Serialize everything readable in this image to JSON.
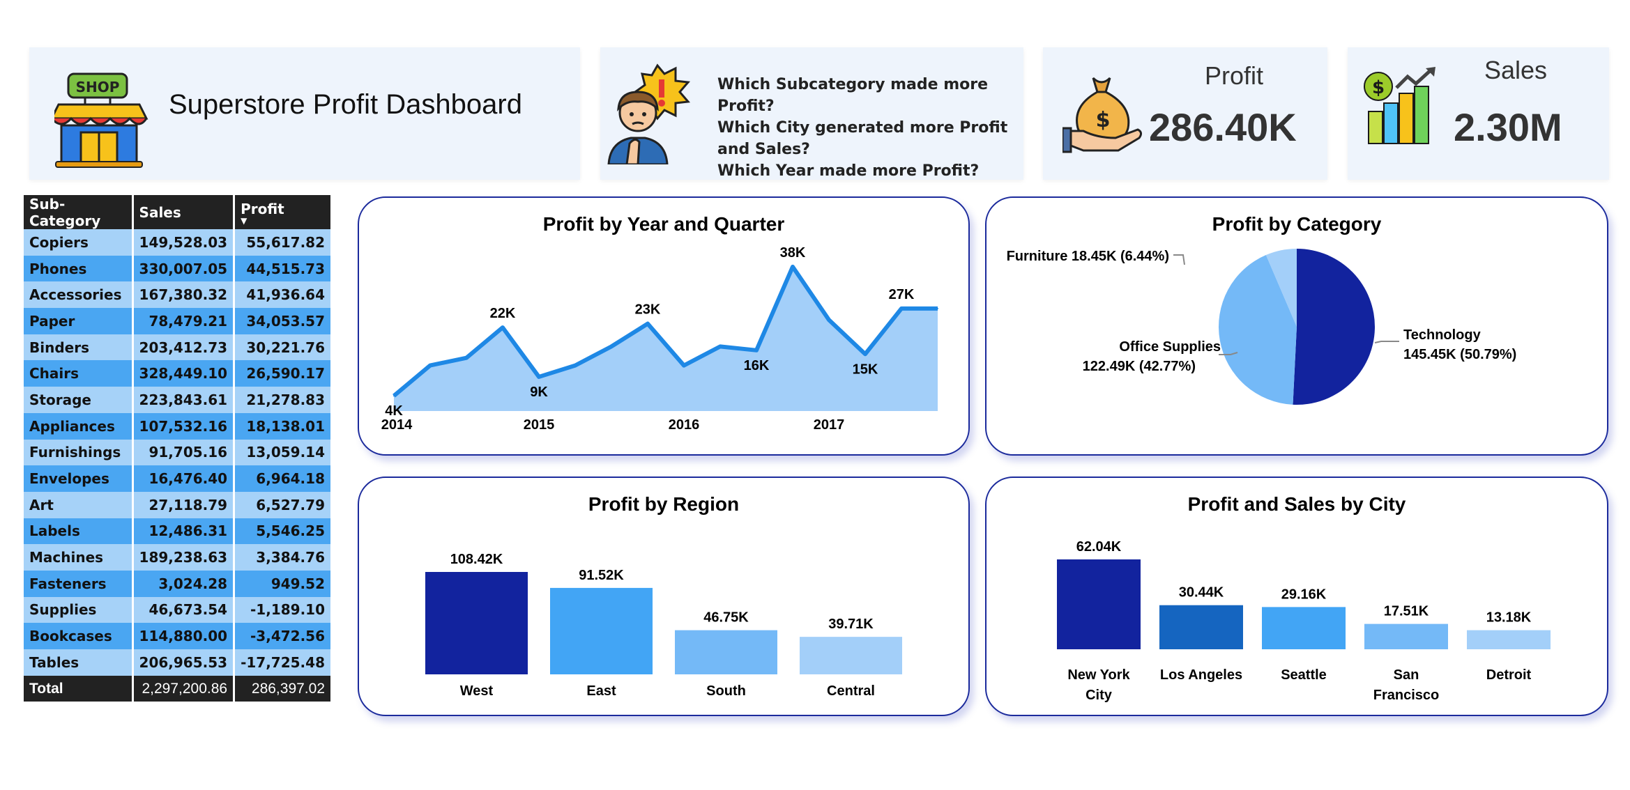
{
  "header": {
    "title": "Superstore Profit Dashboard",
    "questions": [
      "Which Subcategory made more Profit?",
      "Which City generated more Profit and Sales?",
      "Which Year made more Profit?"
    ],
    "icons": {
      "shop": "shop-icon",
      "worried": "worried-person-icon",
      "money": "money-bag-icon",
      "sales": "sales-chart-icon"
    },
    "shop_sign": "SHOP"
  },
  "kpis": {
    "profit": {
      "label": "Profit",
      "value": "286.40K"
    },
    "sales": {
      "label": "Sales",
      "value": "2.30M"
    }
  },
  "table": {
    "headers": [
      "Sub-Category",
      "Sales",
      "Profit"
    ],
    "rows": [
      [
        "Copiers",
        "149,528.03",
        "55,617.82"
      ],
      [
        "Phones",
        "330,007.05",
        "44,515.73"
      ],
      [
        "Accessories",
        "167,380.32",
        "41,936.64"
      ],
      [
        "Paper",
        "78,479.21",
        "34,053.57"
      ],
      [
        "Binders",
        "203,412.73",
        "30,221.76"
      ],
      [
        "Chairs",
        "328,449.10",
        "26,590.17"
      ],
      [
        "Storage",
        "223,843.61",
        "21,278.83"
      ],
      [
        "Appliances",
        "107,532.16",
        "18,138.01"
      ],
      [
        "Furnishings",
        "91,705.16",
        "13,059.14"
      ],
      [
        "Envelopes",
        "16,476.40",
        "6,964.18"
      ],
      [
        "Art",
        "27,118.79",
        "6,527.79"
      ],
      [
        "Labels",
        "12,486.31",
        "5,546.25"
      ],
      [
        "Machines",
        "189,238.63",
        "3,384.76"
      ],
      [
        "Fasteners",
        "3,024.28",
        "949.52"
      ],
      [
        "Supplies",
        "46,673.54",
        "-1,189.10"
      ],
      [
        "Bookcases",
        "114,880.00",
        "-3,472.56"
      ],
      [
        "Tables",
        "206,965.53",
        "-17,725.48"
      ]
    ],
    "total": [
      "Total",
      "2,297,200.86",
      "286,397.02"
    ]
  },
  "colors": {
    "navy": "#12239e",
    "mid_blue": "#1565c0",
    "blue": "#42a5f5",
    "light_blue": "#74b9f7",
    "pale_blue": "#a3cff9",
    "area_fill": "#a3cff9",
    "line": "#1e88e5"
  },
  "chart_data": [
    {
      "type": "area",
      "title": "Profit by Year and Quarter",
      "x_ticks": [
        "2014",
        "2015",
        "2016",
        "2017"
      ],
      "values": [
        4,
        12,
        14,
        22,
        9,
        12,
        17,
        23,
        12,
        17,
        16,
        38,
        24,
        15,
        27,
        27
      ],
      "data_labels": [
        {
          "index": 0,
          "text": "4K"
        },
        {
          "index": 3,
          "text": "22K"
        },
        {
          "index": 4,
          "text": "9K"
        },
        {
          "index": 7,
          "text": "23K"
        },
        {
          "index": 10,
          "text": "16K"
        },
        {
          "index": 11,
          "text": "38K"
        },
        {
          "index": 13,
          "text": "15K"
        },
        {
          "index": 14,
          "text": "27K"
        }
      ],
      "unit": "K",
      "ylim": [
        0,
        40
      ]
    },
    {
      "type": "pie",
      "title": "Profit by Category",
      "slices": [
        {
          "name": "Technology",
          "value": 145.45,
          "label": "Technology",
          "detail": "145.45K (50.79%)"
        },
        {
          "name": "Office Supplies",
          "value": 122.49,
          "label": "Office Supplies",
          "detail": "122.49K (42.77%)"
        },
        {
          "name": "Furniture",
          "value": 18.45,
          "label": "Furniture 18.45K (6.44%)",
          "detail": ""
        }
      ]
    },
    {
      "type": "bar",
      "title": "Profit by Region",
      "categories": [
        "West",
        "East",
        "South",
        "Central"
      ],
      "values": [
        108.42,
        91.52,
        46.75,
        39.71
      ],
      "labels": [
        "108.42K",
        "91.52K",
        "46.75K",
        "39.71K"
      ]
    },
    {
      "type": "bar",
      "title": "Profit and Sales by City",
      "categories": [
        [
          "New York",
          "City"
        ],
        [
          "Los Angeles"
        ],
        [
          "Seattle"
        ],
        [
          "San",
          "Francisco"
        ],
        [
          "Detroit"
        ]
      ],
      "values": [
        62.04,
        30.44,
        29.16,
        17.51,
        13.18
      ],
      "labels": [
        "62.04K",
        "30.44K",
        "29.16K",
        "17.51K",
        "13.18K"
      ]
    }
  ]
}
